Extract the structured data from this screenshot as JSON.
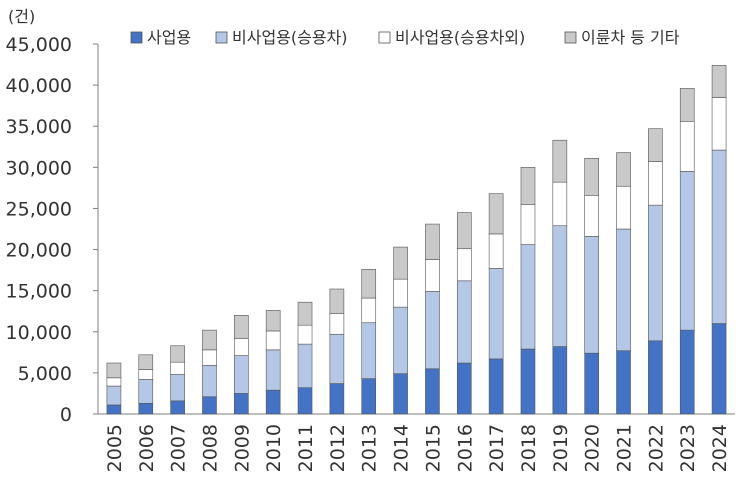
{
  "chart_data": {
    "type": "bar",
    "stacked": true,
    "unit_label": "(건)",
    "title": "",
    "xlabel": "",
    "ylabel": "",
    "ylim": [
      0,
      45000
    ],
    "yticks": [
      0,
      5000,
      10000,
      15000,
      20000,
      25000,
      30000,
      35000,
      40000,
      45000
    ],
    "ytick_labels": [
      "0",
      "5,000",
      "10,000",
      "15,000",
      "20,000",
      "25,000",
      "30,000",
      "35,000",
      "40,000",
      "45,000"
    ],
    "legend_position": "top",
    "grid": false,
    "categories": [
      "2005",
      "2006",
      "2007",
      "2008",
      "2009",
      "2010",
      "2011",
      "2012",
      "2013",
      "2014",
      "2015",
      "2016",
      "2017",
      "2018",
      "2019",
      "2020",
      "2021",
      "2022",
      "2023",
      "2024"
    ],
    "series": [
      {
        "name": "사업용",
        "color": "#4472C4",
        "values": [
          1100,
          1300,
          1600,
          2100,
          2500,
          2900,
          3200,
          3700,
          4300,
          4900,
          5500,
          6200,
          6700,
          7900,
          8200,
          7400,
          7700,
          8900,
          10200,
          11000
        ]
      },
      {
        "name": "비사업용(승용차)",
        "color": "#B4C7E7",
        "values": [
          2300,
          2900,
          3200,
          3800,
          4600,
          4900,
          5300,
          6000,
          6800,
          8100,
          9400,
          10000,
          11000,
          12700,
          14700,
          14200,
          14800,
          16500,
          19300,
          21100
        ]
      },
      {
        "name": "비사업용(승용차외)",
        "color": "#FFFFFF",
        "values": [
          1000,
          1200,
          1500,
          1900,
          2100,
          2300,
          2300,
          2500,
          3000,
          3400,
          3900,
          3900,
          4200,
          4900,
          5300,
          5000,
          5200,
          5300,
          6100,
          6400
        ]
      },
      {
        "name": "이륜차 등 기타",
        "color": "#C9C9C9",
        "values": [
          1800,
          1800,
          2000,
          2400,
          2800,
          2500,
          2800,
          3000,
          3500,
          3900,
          4300,
          4400,
          4900,
          4500,
          5100,
          4500,
          4100,
          4000,
          4000,
          3900
        ]
      }
    ]
  }
}
